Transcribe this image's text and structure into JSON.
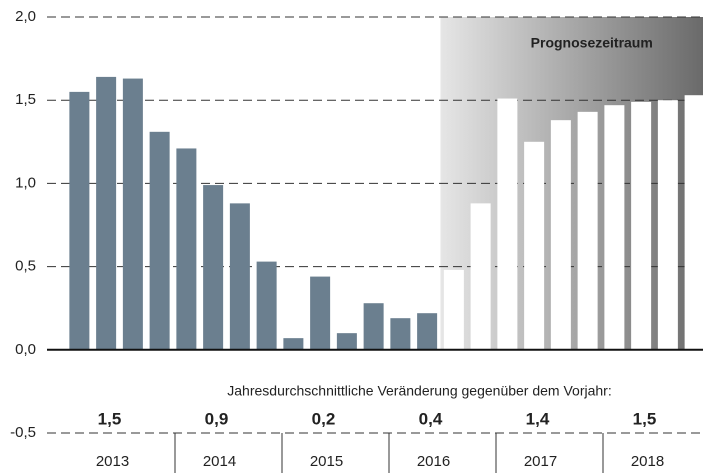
{
  "chart_data": {
    "type": "bar",
    "categories": [
      "2013",
      "2014",
      "2015",
      "2016",
      "2017",
      "2018"
    ],
    "values": [
      [
        1.55,
        1.64,
        1.63,
        1.31
      ],
      [
        1.21,
        0.99,
        0.88,
        0.53
      ],
      [
        0.07,
        0.44,
        0.1,
        0.28
      ],
      [
        0.19,
        0.22,
        0.48,
        0.88
      ],
      [
        1.51,
        1.25,
        1.38,
        1.43
      ],
      [
        1.47,
        1.49,
        1.5,
        1.53
      ]
    ],
    "color": "#6b7f8f",
    "forecast_color": "#ffffff",
    "forecast_label": "Prognosezeitraum",
    "forecast_start": 14,
    "annual_note": "Jahresdurchschnittliche Veränderung gegenüber dem Vorjahr:",
    "annual_values": [
      1.5,
      0.9,
      0.2,
      0.4,
      1.4,
      1.5
    ],
    "annual_labels": [
      "1,5",
      "0,9",
      "0,2",
      "0,4",
      "1,4",
      "1,5"
    ],
    "ylim": [
      -0.5,
      2.0
    ],
    "yticks": [
      {
        "value": -0.5,
        "label": "-0,5"
      },
      {
        "value": 0,
        "label": "0,0"
      },
      {
        "value": 0.5,
        "label": "0,5"
      },
      {
        "value": 1,
        "label": "1,0"
      },
      {
        "value": 1.5,
        "label": "1,5"
      },
      {
        "value": 2,
        "label": "2,0"
      }
    ],
    "grid": true
  }
}
